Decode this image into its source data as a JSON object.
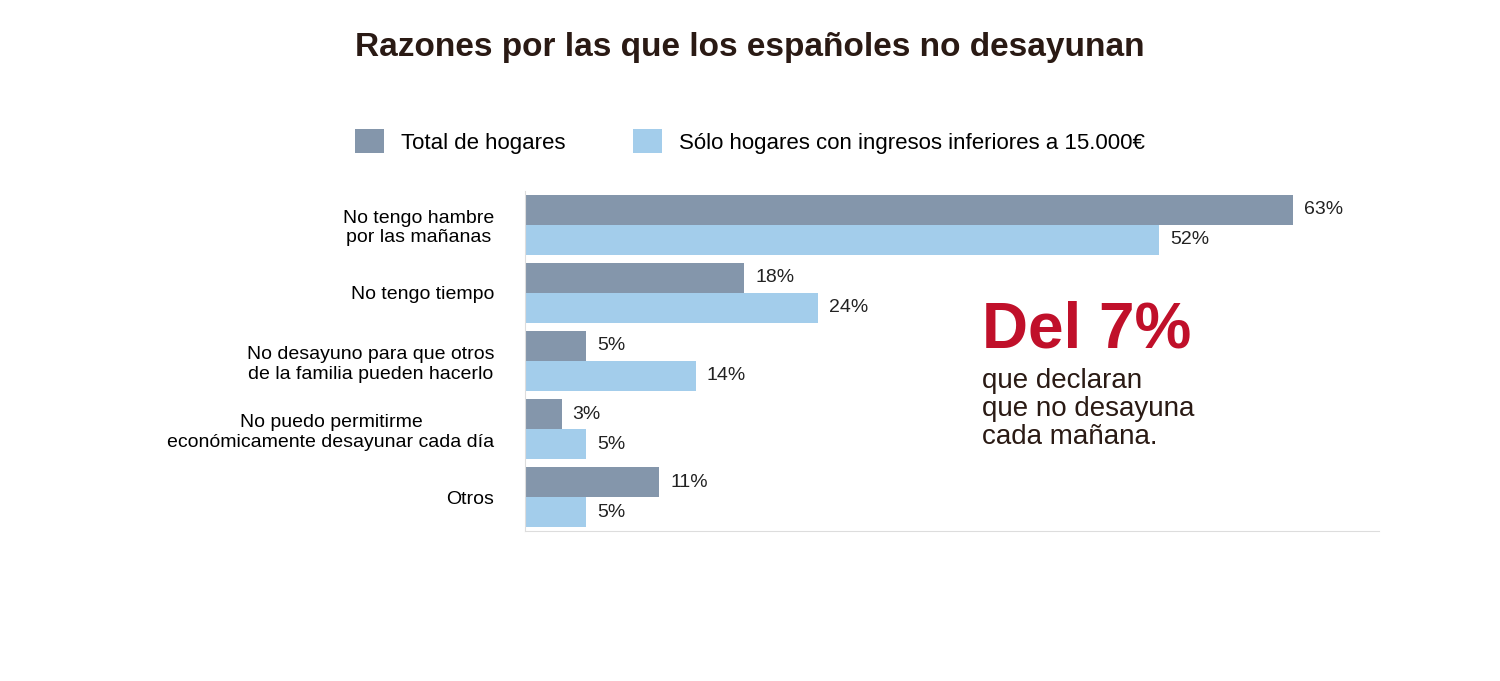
{
  "chart_data": {
    "type": "bar",
    "orientation": "horizontal",
    "title": "Razones por las que los españoles no desayunan",
    "categories": [
      "No tengo hambre\npor las mañanas",
      "No tengo tiempo",
      "No desayuno para que otros\nde la familia pueden hacerlo",
      "No puedo permitirme\neconómicamente desayunar cada día",
      "Otros"
    ],
    "series": [
      {
        "name": "Total de hogares",
        "color": "#8496ab",
        "values": [
          63,
          18,
          5,
          3,
          11
        ],
        "value_labels": [
          "63%",
          "18%",
          "5%",
          "3%",
          "11%"
        ]
      },
      {
        "name": "Sólo hogares con ingresos inferiores a 15.000€",
        "color": "#a3cdeb",
        "values": [
          52,
          24,
          14,
          5,
          5
        ],
        "value_labels": [
          "52%",
          "24%",
          "14%",
          "5%",
          "5%"
        ]
      }
    ],
    "xlim": [
      0,
      70
    ],
    "xticks": [],
    "data_labels": true,
    "tick_labels": "y",
    "grid": false,
    "legend": "upper center",
    "annotations": [
      "Del 7%",
      "que declaran\nque no desayuna\ncada mañana."
    ]
  }
}
